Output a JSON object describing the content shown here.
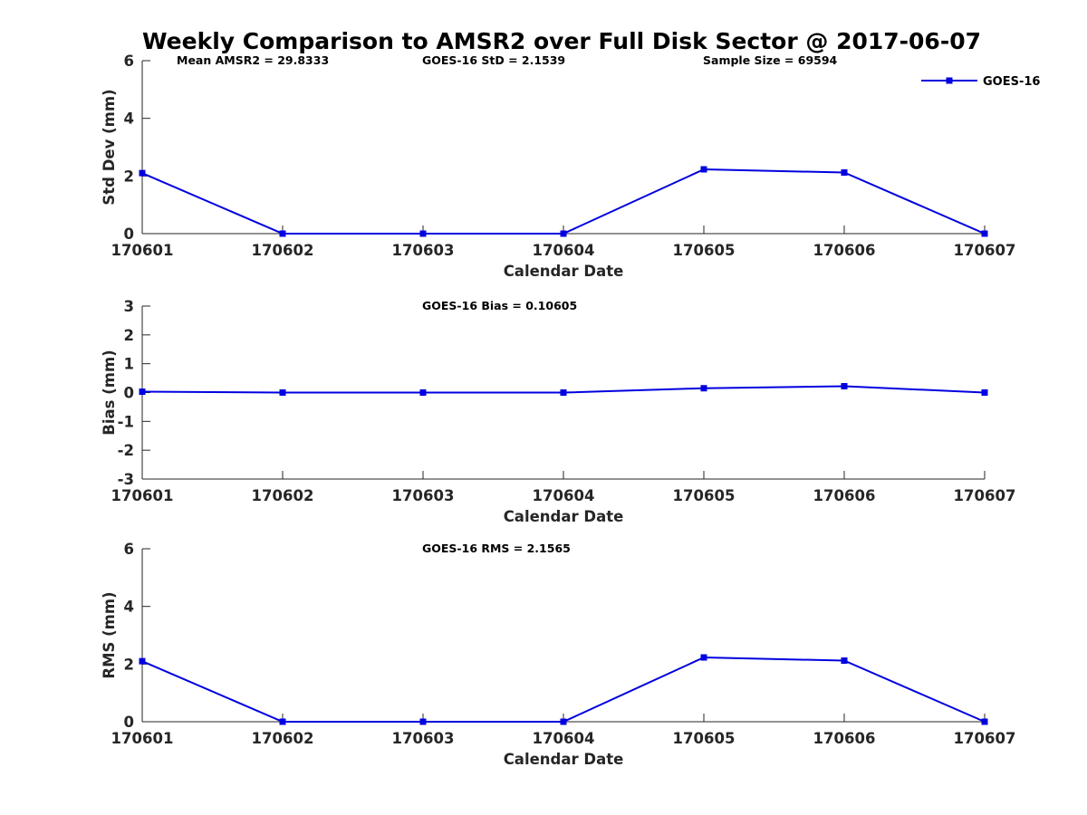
{
  "title": "Weekly Comparison to AMSR2 over Full Disk Sector @ 2017-06-07",
  "colors": {
    "series": "#0000e0",
    "axis": "#262626",
    "text": "#000000"
  },
  "legend": {
    "label": "GOES-16",
    "placement": "top-right"
  },
  "chart_data": [
    {
      "type": "line",
      "xlabel": "Calendar Date",
      "ylabel": "Std Dev (mm)",
      "ylim": [
        0,
        6
      ],
      "yticks": [
        "0",
        "2",
        "4",
        "6"
      ],
      "categories": [
        "170601",
        "170602",
        "170603",
        "170604",
        "170605",
        "170606",
        "170607"
      ],
      "series": [
        {
          "name": "GOES-16",
          "values": [
            2.1,
            0,
            0,
            0,
            2.23,
            2.12,
            0
          ]
        }
      ],
      "annotations": [
        "Mean AMSR2 = 29.8333",
        "GOES-16 StD = 2.1539",
        "Sample Size = 69594"
      ],
      "legend": true
    },
    {
      "type": "line",
      "xlabel": "Calendar Date",
      "ylabel": "Bias (mm)",
      "ylim": [
        -3,
        3
      ],
      "yticks": [
        "-3",
        "-2",
        "-1",
        "0",
        "1",
        "2",
        "3"
      ],
      "categories": [
        "170601",
        "170602",
        "170603",
        "170604",
        "170605",
        "170606",
        "170607"
      ],
      "series": [
        {
          "name": "GOES-16",
          "values": [
            0.03,
            0,
            0,
            0,
            0.15,
            0.22,
            0
          ]
        }
      ],
      "annotations": [
        "GOES-16 Bias  = 0.10605"
      ],
      "legend": false
    },
    {
      "type": "line",
      "xlabel": "Calendar Date",
      "ylabel": "RMS (mm)",
      "ylim": [
        0,
        6
      ],
      "yticks": [
        "0",
        "2",
        "4",
        "6"
      ],
      "categories": [
        "170601",
        "170602",
        "170603",
        "170604",
        "170605",
        "170606",
        "170607"
      ],
      "series": [
        {
          "name": "GOES-16",
          "values": [
            2.1,
            0,
            0,
            0,
            2.23,
            2.12,
            0
          ]
        }
      ],
      "annotations": [
        "GOES-16 RMS = 2.1565"
      ],
      "legend": false
    }
  ]
}
